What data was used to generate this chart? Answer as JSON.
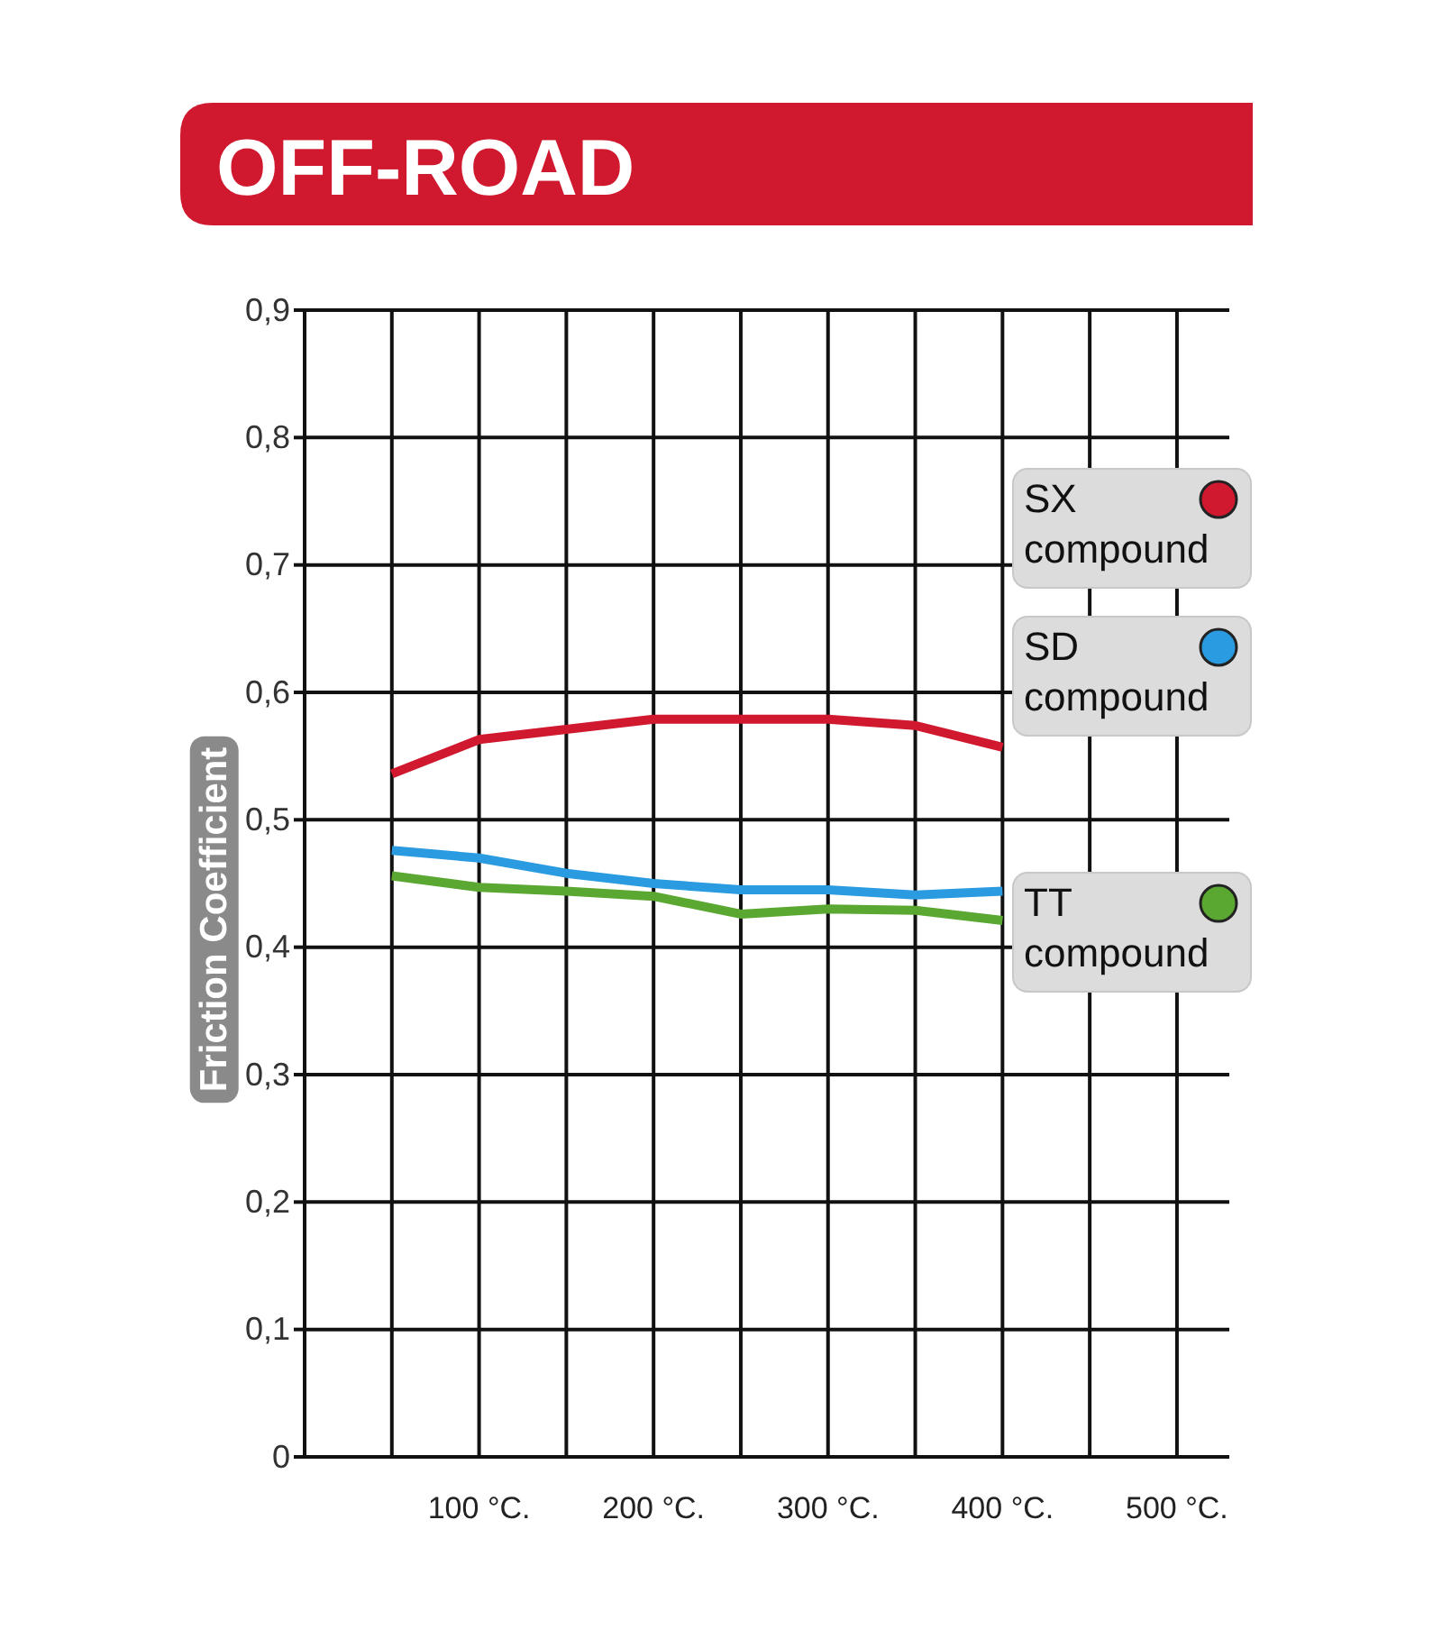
{
  "chart_data": {
    "type": "line",
    "title": "OFF-ROAD",
    "ylabel": "Friction Coefficient",
    "x": [
      50,
      100,
      150,
      200,
      250,
      300,
      350,
      400
    ],
    "series": [
      {
        "name": "SX compound",
        "color": "#d0182f",
        "values": [
          0.536,
          0.563,
          0.571,
          0.579,
          0.579,
          0.579,
          0.574,
          0.557
        ]
      },
      {
        "name": "SD compound",
        "color": "#2a9be0",
        "values": [
          0.476,
          0.47,
          0.458,
          0.45,
          0.445,
          0.445,
          0.441,
          0.444
        ]
      },
      {
        "name": "TT compound",
        "color": "#5aa832",
        "values": [
          0.456,
          0.447,
          0.444,
          0.44,
          0.426,
          0.43,
          0.429,
          0.421
        ]
      }
    ],
    "xlim": [
      0,
      530
    ],
    "xticks": [
      {
        "value": 50,
        "label": null
      },
      {
        "value": 100,
        "label": "100 °C."
      },
      {
        "value": 150,
        "label": null
      },
      {
        "value": 200,
        "label": "200 °C."
      },
      {
        "value": 250,
        "label": null
      },
      {
        "value": 300,
        "label": "300 °C."
      },
      {
        "value": 350,
        "label": null
      },
      {
        "value": 400,
        "label": "400 °C."
      },
      {
        "value": 450,
        "label": null
      },
      {
        "value": 500,
        "label": "500 °C."
      }
    ],
    "ylim": [
      0,
      0.9
    ],
    "yticks": [
      0,
      {
        "value": 0.1,
        "label": "0,1"
      },
      {
        "value": 0.2,
        "label": "0,2"
      },
      {
        "value": 0.3,
        "label": "0,3"
      },
      {
        "value": 0.4,
        "label": "0,4"
      },
      {
        "value": 0.5,
        "label": "0,5"
      },
      {
        "value": 0.6,
        "label": "0,6"
      },
      {
        "value": 0.7,
        "label": "0,7"
      },
      {
        "value": 0.8,
        "label": "0,8"
      },
      {
        "value": 0.9,
        "label": "0,9"
      }
    ],
    "grid": true,
    "legend": "right",
    "marker": "none",
    "line_style": "solid"
  }
}
